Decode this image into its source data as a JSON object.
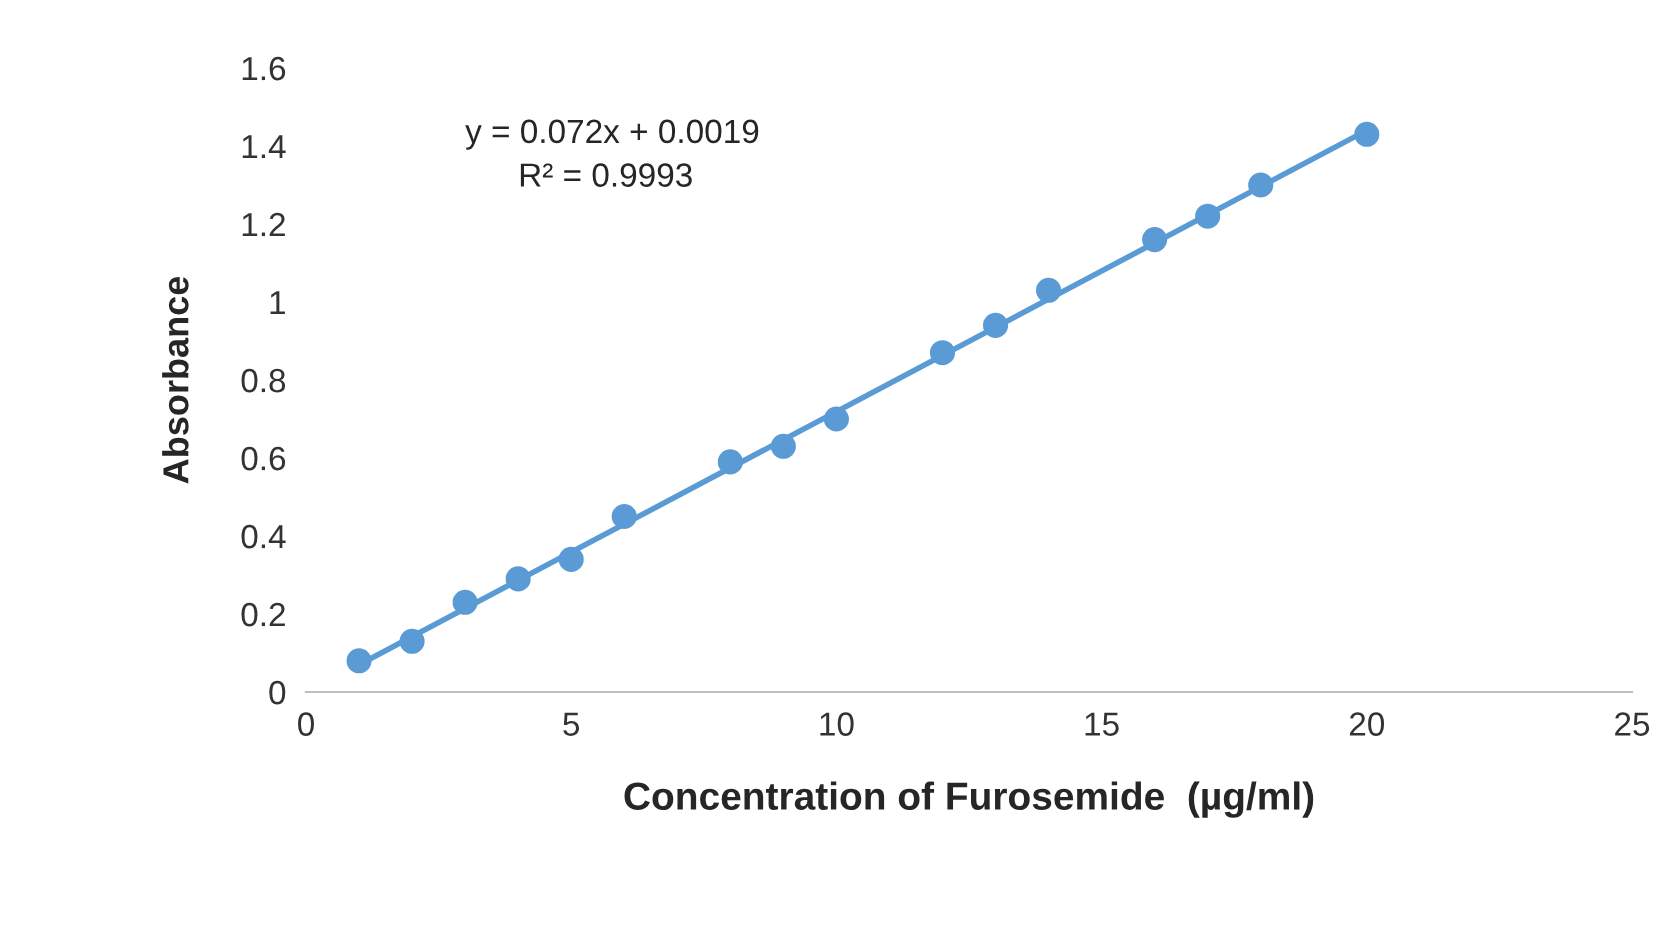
{
  "chart_data": {
    "type": "scatter",
    "xlabel": "Concentration of Furosemide  (µg/ml)",
    "ylabel": "Absorbance",
    "x": [
      1,
      2,
      3,
      4,
      5,
      6,
      8,
      9,
      10,
      12,
      13,
      14,
      16,
      17,
      18,
      20
    ],
    "series": [
      {
        "color": "#5b9bd5",
        "marker": "circle",
        "values": [
          0.08,
          0.13,
          0.23,
          0.29,
          0.34,
          0.45,
          0.59,
          0.63,
          0.7,
          0.87,
          0.94,
          1.03,
          1.16,
          1.22,
          1.3,
          1.43
        ]
      },
      {
        "type": "line",
        "marker": "none",
        "color": "#5b9bd5",
        "x": [
          1,
          20
        ],
        "values": [
          0.07,
          1.44
        ]
      }
    ],
    "annotations": [
      "y = 0.072x + 0.0019",
      "R² = 0.9993"
    ],
    "xlim": [
      0,
      25
    ],
    "xticks": [
      0,
      5,
      10,
      15,
      20,
      25
    ],
    "ylim": [
      0,
      1.6
    ],
    "yticks": [
      0,
      0.2,
      0.4,
      0.6,
      0.8,
      1,
      1.2,
      1.4,
      1.6
    ],
    "grid": false,
    "legend": false
  }
}
